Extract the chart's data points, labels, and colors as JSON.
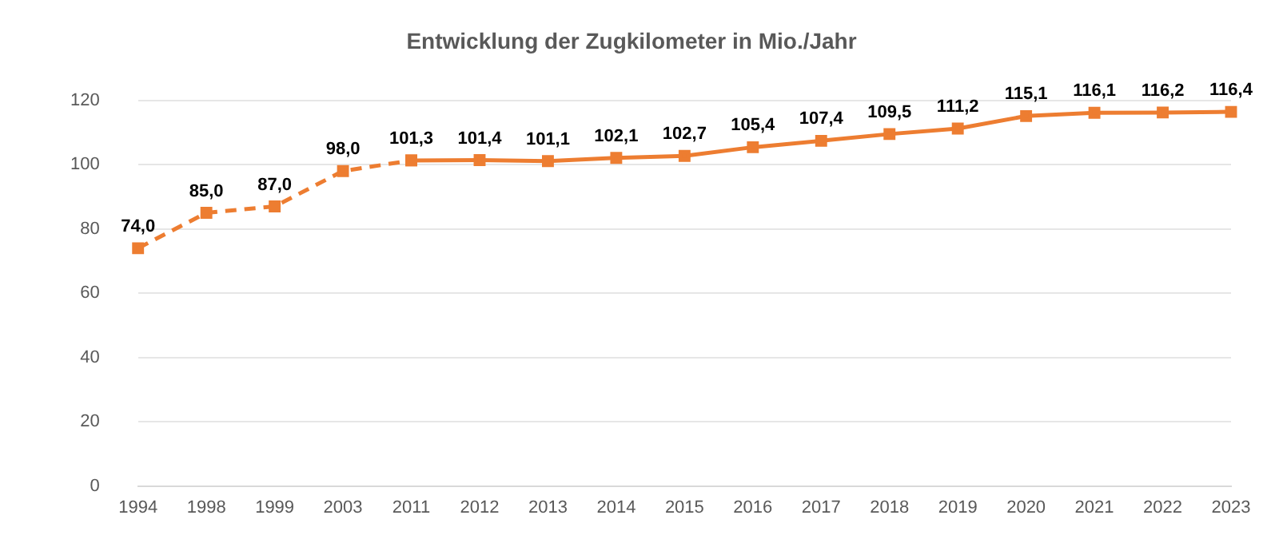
{
  "chart_data": {
    "type": "line",
    "title": "Entwicklung der Zugkilometer in Mio./Jahr",
    "categories": [
      "1994",
      "1998",
      "1999",
      "2003",
      "2011",
      "2012",
      "2013",
      "2014",
      "2015",
      "2016",
      "2017",
      "2018",
      "2019",
      "2020",
      "2021",
      "2022",
      "2023"
    ],
    "series": [
      {
        "color": "#ed7d31",
        "line_style": "dashed",
        "values": [
          74.0,
          85.0,
          87.0,
          98.0,
          101.3,
          null,
          null,
          null,
          null,
          null,
          null,
          null,
          null,
          null,
          null,
          null,
          null
        ],
        "value_labels": [
          "74,0",
          "85,0",
          "87,0",
          "98,0",
          "101,3",
          null,
          null,
          null,
          null,
          null,
          null,
          null,
          null,
          null,
          null,
          null,
          null
        ]
      },
      {
        "color": "#ed7d31",
        "line_style": "solid",
        "values": [
          null,
          null,
          null,
          null,
          101.3,
          101.4,
          101.1,
          102.1,
          102.7,
          105.4,
          107.4,
          109.5,
          111.2,
          115.1,
          116.1,
          116.2,
          116.4
        ],
        "value_labels": [
          null,
          null,
          null,
          null,
          null,
          "101,4",
          "101,1",
          "102,1",
          "102,7",
          "105,4",
          "107,4",
          "109,5",
          "111,2",
          "115,1",
          "116,1",
          "116,2",
          "116,4"
        ]
      }
    ],
    "ylim": [
      0,
      120
    ],
    "yticks": [
      0,
      20,
      40,
      60,
      80,
      100,
      120
    ],
    "grid": "y",
    "marker": "square",
    "legend": false
  }
}
